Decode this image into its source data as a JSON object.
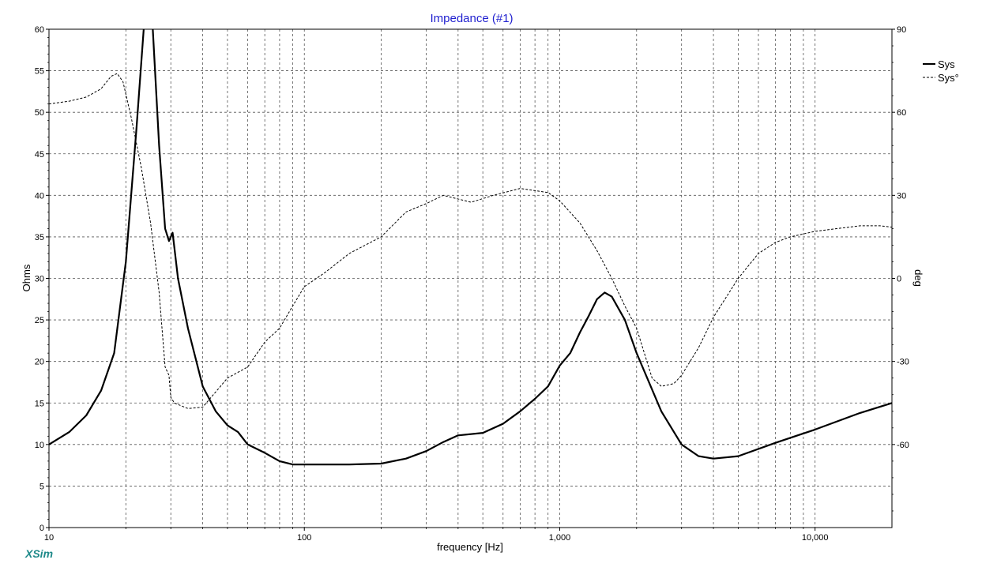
{
  "chart_data": {
    "type": "line",
    "title": "Impedance (#1)",
    "xlabel": "frequency [Hz]",
    "ylabel_left": "Ohms",
    "ylabel_right": "deg",
    "x_scale": "log",
    "xlim": [
      10,
      20000
    ],
    "ylim_left": [
      0,
      60
    ],
    "ylim_right": [
      -90,
      90
    ],
    "x_ticks": [
      {
        "value": 10,
        "label": "10"
      },
      {
        "value": 100,
        "label": "100"
      },
      {
        "value": 1000,
        "label": "1,000"
      },
      {
        "value": 10000,
        "label": "10,000"
      }
    ],
    "y_ticks_left": [
      0,
      5,
      10,
      15,
      20,
      25,
      30,
      35,
      40,
      45,
      50,
      55,
      60
    ],
    "y_ticks_right": [
      -60,
      -30,
      0,
      30,
      60,
      90
    ],
    "grid": true,
    "legend_position": "top-right",
    "series": [
      {
        "name": "Sys",
        "axis": "left",
        "style": "solid",
        "points": [
          [
            10,
            10
          ],
          [
            12,
            11.5
          ],
          [
            14,
            13.5
          ],
          [
            16,
            16.5
          ],
          [
            18,
            21
          ],
          [
            20,
            32
          ],
          [
            22,
            48
          ],
          [
            23.5,
            60
          ],
          [
            24.5,
            62
          ],
          [
            25.5,
            60
          ],
          [
            27,
            46
          ],
          [
            28.5,
            36
          ],
          [
            29.5,
            34.5
          ],
          [
            30.5,
            35.5
          ],
          [
            32,
            30
          ],
          [
            35,
            24
          ],
          [
            40,
            17
          ],
          [
            45,
            14
          ],
          [
            50,
            12.3
          ],
          [
            55,
            11.5
          ],
          [
            60,
            10
          ],
          [
            70,
            9
          ],
          [
            80,
            8
          ],
          [
            90,
            7.6
          ],
          [
            100,
            7.6
          ],
          [
            150,
            7.6
          ],
          [
            200,
            7.7
          ],
          [
            250,
            8.3
          ],
          [
            300,
            9.2
          ],
          [
            350,
            10.3
          ],
          [
            400,
            11.1
          ],
          [
            500,
            11.4
          ],
          [
            600,
            12.5
          ],
          [
            700,
            14
          ],
          [
            800,
            15.5
          ],
          [
            900,
            17
          ],
          [
            1000,
            19.5
          ],
          [
            1100,
            21
          ],
          [
            1200,
            23.5
          ],
          [
            1300,
            25.5
          ],
          [
            1400,
            27.5
          ],
          [
            1500,
            28.3
          ],
          [
            1600,
            27.8
          ],
          [
            1800,
            25
          ],
          [
            2000,
            21
          ],
          [
            2500,
            14
          ],
          [
            3000,
            10
          ],
          [
            3500,
            8.6
          ],
          [
            4000,
            8.3
          ],
          [
            5000,
            8.6
          ],
          [
            7000,
            10.2
          ],
          [
            10000,
            11.8
          ],
          [
            15000,
            13.8
          ],
          [
            20000,
            15
          ]
        ]
      },
      {
        "name": "Sys°",
        "axis": "right",
        "style": "dashed",
        "points": [
          [
            10,
            63
          ],
          [
            12,
            64
          ],
          [
            14,
            65.5
          ],
          [
            16,
            68.5
          ],
          [
            17.5,
            73
          ],
          [
            18.5,
            74
          ],
          [
            19.5,
            71
          ],
          [
            21,
            58
          ],
          [
            23,
            40
          ],
          [
            25,
            20
          ],
          [
            27,
            -5
          ],
          [
            28.5,
            -32
          ],
          [
            29.5,
            -35
          ],
          [
            30,
            -43
          ],
          [
            31,
            -45
          ],
          [
            35,
            -47
          ],
          [
            40,
            -46.5
          ],
          [
            45,
            -41
          ],
          [
            50,
            -36
          ],
          [
            60,
            -32
          ],
          [
            70,
            -23
          ],
          [
            80,
            -18
          ],
          [
            90,
            -10
          ],
          [
            100,
            -3
          ],
          [
            120,
            2
          ],
          [
            150,
            9
          ],
          [
            200,
            15
          ],
          [
            250,
            24
          ],
          [
            300,
            27
          ],
          [
            350,
            30
          ],
          [
            450,
            27.5
          ],
          [
            550,
            30
          ],
          [
            700,
            32.5
          ],
          [
            900,
            31
          ],
          [
            1000,
            28
          ],
          [
            1200,
            20
          ],
          [
            1400,
            10
          ],
          [
            1600,
            0
          ],
          [
            1800,
            -10
          ],
          [
            2000,
            -18
          ],
          [
            2300,
            -36
          ],
          [
            2500,
            -39
          ],
          [
            2800,
            -38
          ],
          [
            3000,
            -35
          ],
          [
            3500,
            -25
          ],
          [
            4000,
            -14
          ],
          [
            5000,
            0
          ],
          [
            6000,
            9
          ],
          [
            7000,
            13
          ],
          [
            8000,
            15
          ],
          [
            10000,
            17
          ],
          [
            15000,
            19
          ],
          [
            18000,
            19
          ],
          [
            20000,
            18.5
          ]
        ]
      }
    ],
    "brand": "XSim"
  }
}
